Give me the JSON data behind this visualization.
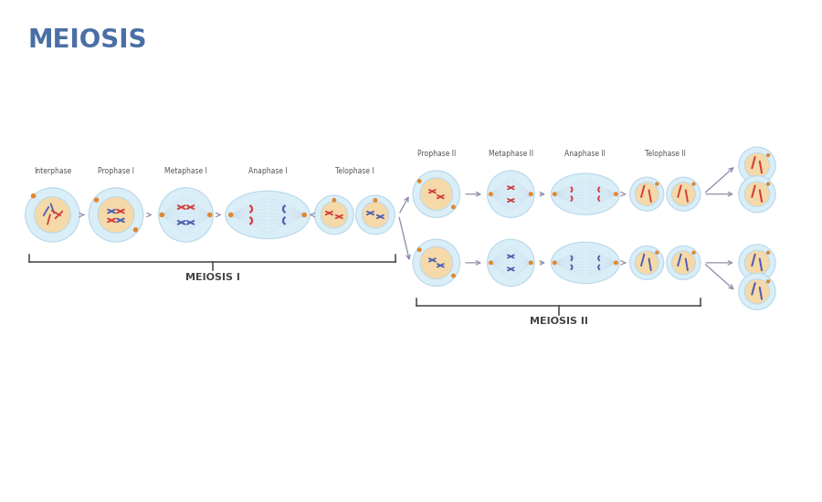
{
  "title": "MEIOSIS",
  "title_color": "#4a6fa5",
  "title_fontsize": 20,
  "bg_color": "#ffffff",
  "cell_outer_color": "#daeef8",
  "cell_inner_color": "#f5d9a8",
  "cell_border_color": "#b8d8ea",
  "spindle_color": "#c8d8e8",
  "chr_red": "#d04040",
  "chr_blue": "#5060b0",
  "dot_color": "#e08830",
  "arrow_color": "#9090a8",
  "label_color": "#555555",
  "brace_color": "#444444",
  "meiosis1_label": "MEIOSIS I",
  "meiosis2_label": "MEIOSIS II",
  "phase_labels_1": [
    "Interphase",
    "Prophase I",
    "Metaphase I",
    "Anaphase I",
    "Telophase I"
  ],
  "phase_labels_2": [
    "Prophase II",
    "Metaphase II",
    "Anaphase II",
    "Telophase II"
  ]
}
